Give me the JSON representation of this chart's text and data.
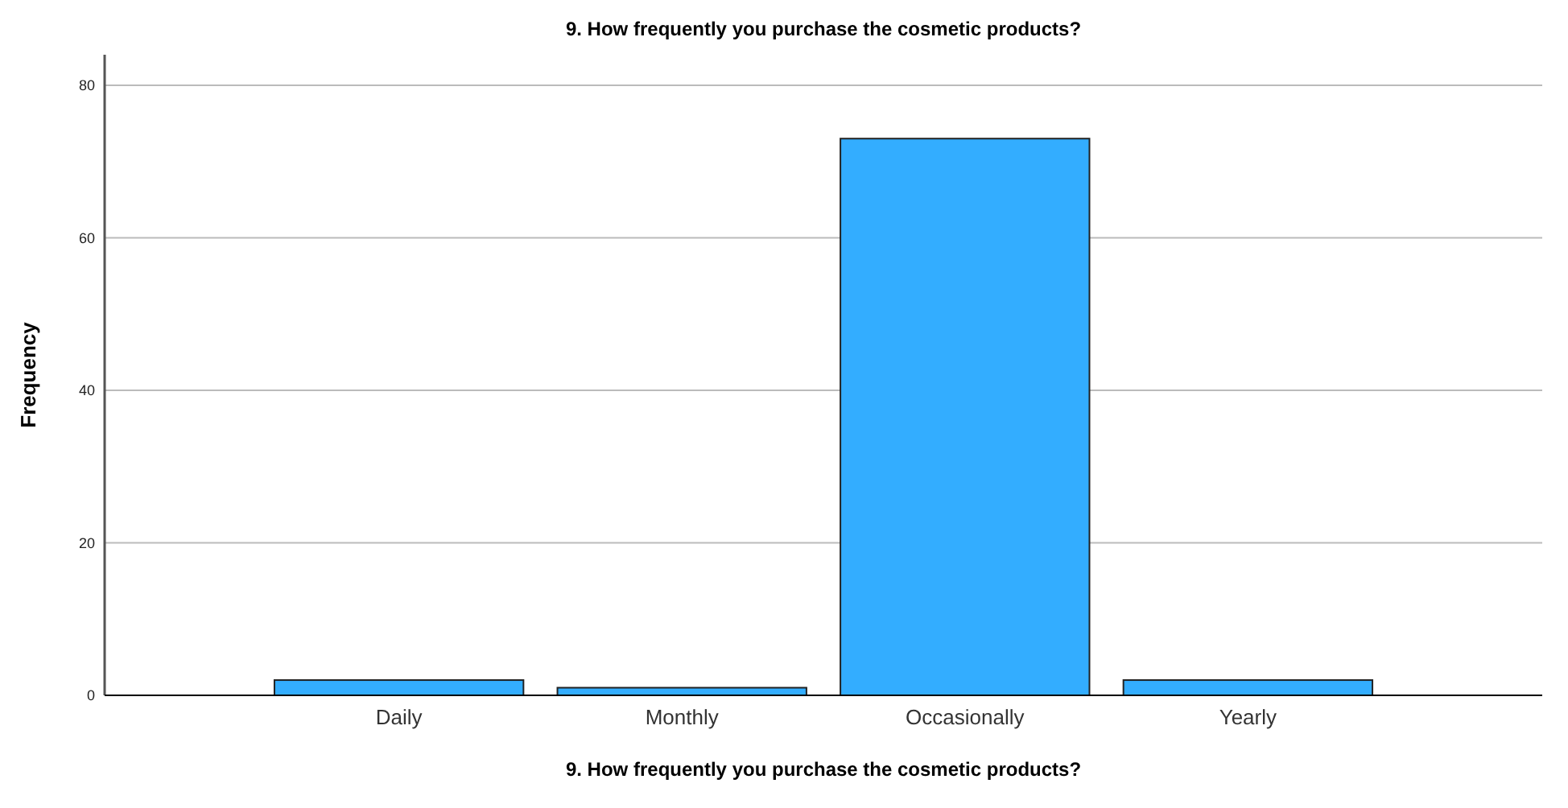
{
  "chart_data": {
    "type": "bar",
    "title": "9. How frequently you purchase the cosmetic products?",
    "xlabel": "9. How frequently you purchase the cosmetic products?",
    "ylabel": "Frequency",
    "categories": [
      "Daily",
      "Monthly",
      "Occasionally",
      "Yearly"
    ],
    "values": [
      2,
      1,
      73,
      2
    ],
    "color": "#33adff",
    "ylim": [
      0,
      84
    ],
    "yticks": [
      0,
      20,
      40,
      60,
      80
    ],
    "grid": "y"
  }
}
